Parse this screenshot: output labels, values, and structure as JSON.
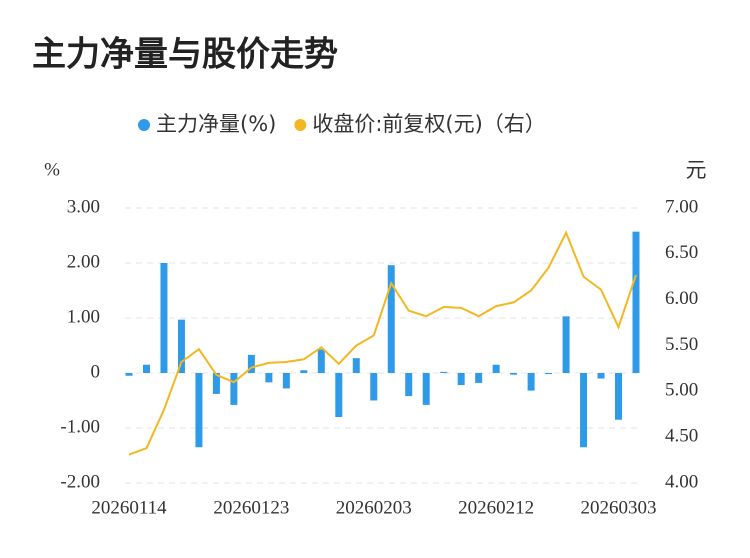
{
  "chart_data": {
    "type": "bar_line",
    "title": "主力净量与股价走势",
    "y_axis_label": "%",
    "y2_axis_label": "元",
    "categories": [
      "20260114",
      null,
      null,
      null,
      null,
      null,
      null,
      "20260123",
      null,
      null,
      null,
      null,
      null,
      null,
      "20260203",
      null,
      null,
      null,
      null,
      null,
      null,
      "20260212",
      null,
      null,
      null,
      null,
      null,
      null,
      "20260303",
      null
    ],
    "series": [
      {
        "name": "主力净量(%)",
        "type": "bar",
        "color": "#2f9be8",
        "values": [
          -0.05,
          0.15,
          2.0,
          0.97,
          -1.35,
          -0.38,
          -0.58,
          0.33,
          -0.17,
          -0.28,
          0.05,
          0.43,
          -0.8,
          0.27,
          -0.5,
          1.96,
          -0.42,
          -0.58,
          0.02,
          -0.22,
          -0.18,
          0.15,
          -0.03,
          -0.32,
          -0.02,
          1.03,
          -1.35,
          -0.1,
          -0.85,
          2.57
        ]
      },
      {
        "name": "收盘价:前复权(元)（右）",
        "type": "line",
        "axis": "y2",
        "color": "#f2b722",
        "values": [
          4.31,
          4.38,
          4.8,
          5.32,
          5.46,
          5.18,
          5.1,
          5.26,
          5.31,
          5.32,
          5.35,
          5.48,
          5.3,
          5.5,
          5.61,
          6.18,
          5.88,
          5.82,
          5.92,
          5.91,
          5.82,
          5.93,
          5.97,
          6.1,
          6.35,
          6.73,
          6.25,
          6.11,
          5.7,
          6.27
        ]
      }
    ],
    "ylim": [
      -2,
      3
    ],
    "yticks": [
      {
        "value": -2,
        "label": "-2.00"
      },
      {
        "value": -1,
        "label": "-1.00"
      },
      0,
      {
        "value": 1,
        "label": "1.00"
      },
      {
        "value": 2,
        "label": "2.00"
      },
      {
        "value": 3,
        "label": "3.00"
      }
    ],
    "y2lim": [
      4,
      7
    ],
    "y2ticks": [
      {
        "value": 4,
        "label": "4.00"
      },
      {
        "value": 4.5,
        "label": "4.50"
      },
      {
        "value": 5,
        "label": "5.00"
      },
      {
        "value": 5.5,
        "label": "5.50"
      },
      {
        "value": 6,
        "label": "6.00"
      },
      {
        "value": 6.5,
        "label": "6.50"
      },
      {
        "value": 7,
        "label": "7.00"
      }
    ],
    "grid": true
  }
}
